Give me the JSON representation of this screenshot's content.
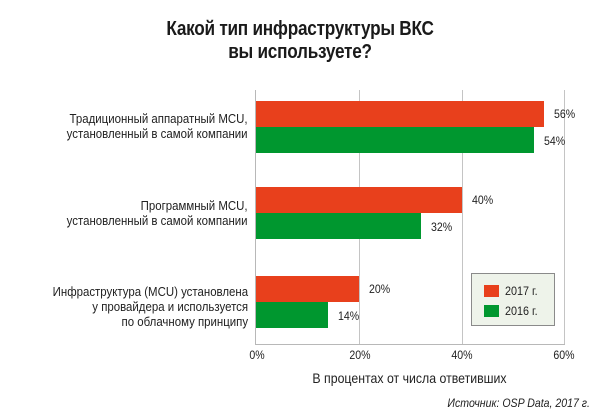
{
  "chart_data": {
    "type": "bar",
    "orientation": "horizontal",
    "title": "Какой тип инфраструктуры ВКС вы используете?",
    "title_lines": [
      "Какой тип инфраструктуры ВКС",
      "вы используете?"
    ],
    "categories": [
      "Традиционный аппаратный MCU, установленный в самой компании",
      "Программный MCU, установленный в самой компании",
      "Инфраструктура (MCU) установлена у провайдера и используется по облачному принципу"
    ],
    "category_lines": [
      [
        "Традиционный аппаратный MCU,",
        "установленный в самой компании"
      ],
      [
        "Программный MCU,",
        "установленный в самой компании"
      ],
      [
        "Инфраструктура (MCU) установлена",
        "у провайдера и используется",
        "по облачному принципу"
      ]
    ],
    "series": [
      {
        "name": "2017 г.",
        "color": "#e8401c",
        "values": [
          56,
          40,
          20
        ],
        "labels": [
          "56%",
          "40%",
          "20%"
        ]
      },
      {
        "name": "2016 г.",
        "color": "#00972f",
        "values": [
          54,
          32,
          14
        ],
        "labels": [
          "54%",
          "32%",
          "14%"
        ]
      }
    ],
    "xlabel": "В процентах от числа ответивших",
    "ylabel": "",
    "xlim": [
      0,
      60
    ],
    "xticks": [
      "0%",
      "20%",
      "40%",
      "60%"
    ],
    "grid": true,
    "legend_position": "lower right, inside plot",
    "source": "Источник: OSP Data, 2017 г."
  }
}
